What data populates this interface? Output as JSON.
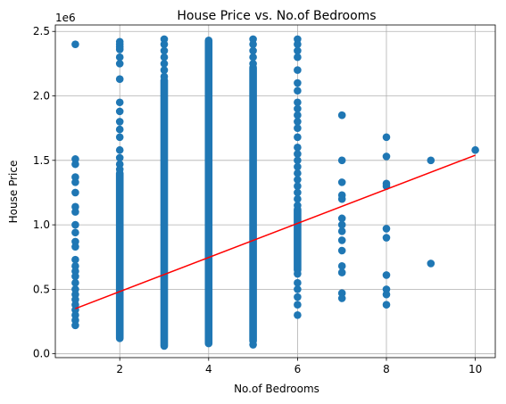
{
  "chart_data": {
    "type": "scatter",
    "title": "House Price vs. No.of Bedrooms",
    "xlabel": "No.of Bedrooms",
    "ylabel": "House Price",
    "y_offset_label": "1e6",
    "xlim": [
      0.55,
      10.45
    ],
    "ylim": [
      -0.03,
      2.55
    ],
    "x_ticks": [
      2,
      4,
      6,
      8,
      10
    ],
    "y_ticks": [
      0.0,
      0.5,
      1.0,
      1.5,
      2.0,
      2.5
    ],
    "x_tick_labels": [
      "2",
      "4",
      "6",
      "8",
      "10"
    ],
    "y_tick_labels": [
      "0.0",
      "0.5",
      "1.0",
      "1.5",
      "2.0",
      "2.5"
    ],
    "grid": true,
    "colors": {
      "points": "#1f77b4",
      "trendline": "#ff0000",
      "grid": "#b0b0b0",
      "axes": "#000000"
    },
    "scatter_points": [
      {
        "x": 1,
        "y": 2.4
      },
      {
        "x": 1,
        "y": 1.51
      },
      {
        "x": 1,
        "y": 1.47
      },
      {
        "x": 1,
        "y": 1.37
      },
      {
        "x": 1,
        "y": 1.33
      },
      {
        "x": 1,
        "y": 1.25
      },
      {
        "x": 1,
        "y": 1.14
      },
      {
        "x": 1,
        "y": 1.1
      },
      {
        "x": 1,
        "y": 1.0
      },
      {
        "x": 1,
        "y": 0.94
      },
      {
        "x": 1,
        "y": 0.87
      },
      {
        "x": 1,
        "y": 0.83
      },
      {
        "x": 1,
        "y": 0.73
      },
      {
        "x": 1,
        "y": 0.68
      },
      {
        "x": 1,
        "y": 0.64
      },
      {
        "x": 1,
        "y": 0.6
      },
      {
        "x": 1,
        "y": 0.55
      },
      {
        "x": 1,
        "y": 0.5
      },
      {
        "x": 1,
        "y": 0.46
      },
      {
        "x": 1,
        "y": 0.42
      },
      {
        "x": 1,
        "y": 0.38
      },
      {
        "x": 1,
        "y": 0.34
      },
      {
        "x": 1,
        "y": 0.3
      },
      {
        "x": 1,
        "y": 0.26
      },
      {
        "x": 1,
        "y": 0.22
      },
      {
        "x": 7,
        "y": 1.85
      },
      {
        "x": 7,
        "y": 1.5
      },
      {
        "x": 7,
        "y": 1.33
      },
      {
        "x": 7,
        "y": 1.23
      },
      {
        "x": 7,
        "y": 1.2
      },
      {
        "x": 7,
        "y": 1.05
      },
      {
        "x": 7,
        "y": 1.0
      },
      {
        "x": 7,
        "y": 0.95
      },
      {
        "x": 7,
        "y": 0.88
      },
      {
        "x": 7,
        "y": 0.8
      },
      {
        "x": 7,
        "y": 0.68
      },
      {
        "x": 7,
        "y": 0.63
      },
      {
        "x": 7,
        "y": 0.47
      },
      {
        "x": 7,
        "y": 0.43
      },
      {
        "x": 8,
        "y": 1.68
      },
      {
        "x": 8,
        "y": 1.53
      },
      {
        "x": 8,
        "y": 1.32
      },
      {
        "x": 8,
        "y": 1.3
      },
      {
        "x": 8,
        "y": 0.97
      },
      {
        "x": 8,
        "y": 0.9
      },
      {
        "x": 8,
        "y": 0.61
      },
      {
        "x": 8,
        "y": 0.5
      },
      {
        "x": 8,
        "y": 0.46
      },
      {
        "x": 8,
        "y": 0.38
      },
      {
        "x": 9,
        "y": 1.5
      },
      {
        "x": 9,
        "y": 0.7
      },
      {
        "x": 10,
        "y": 1.58
      }
    ],
    "dense_columns": [
      {
        "x": 2,
        "y_min": 0.12,
        "y_max": 2.42,
        "sparse": [
          2.42,
          2.4,
          2.38,
          2.36,
          2.3,
          2.25,
          2.13,
          1.95,
          1.88,
          1.8,
          1.74,
          1.68,
          1.58,
          1.52,
          1.47,
          1.43
        ]
      },
      {
        "x": 3,
        "y_min": 0.06,
        "y_max": 2.44,
        "sparse": [
          2.44,
          2.4,
          2.35,
          2.3,
          2.25,
          2.2,
          2.15
        ]
      },
      {
        "x": 4,
        "y_min": 0.08,
        "y_max": 2.43,
        "sparse": []
      },
      {
        "x": 5,
        "y_min": 0.07,
        "y_max": 2.44,
        "sparse": [
          2.44,
          2.4,
          2.35,
          2.3,
          2.25,
          0.07
        ]
      },
      {
        "x": 6,
        "y_min": 0.3,
        "y_max": 2.44,
        "sparse": [
          2.44,
          2.4,
          2.35,
          2.3,
          2.2,
          2.1,
          2.04,
          1.95,
          1.9,
          1.85,
          1.8,
          1.75,
          1.68,
          1.6,
          1.55,
          1.5,
          1.45,
          1.4,
          1.35,
          1.3,
          1.25,
          1.2,
          1.15,
          0.62,
          0.55,
          0.5,
          0.44,
          0.38,
          0.3
        ]
      }
    ],
    "trendline": {
      "x": [
        1,
        10
      ],
      "y": [
        0.35,
        1.54
      ]
    }
  }
}
